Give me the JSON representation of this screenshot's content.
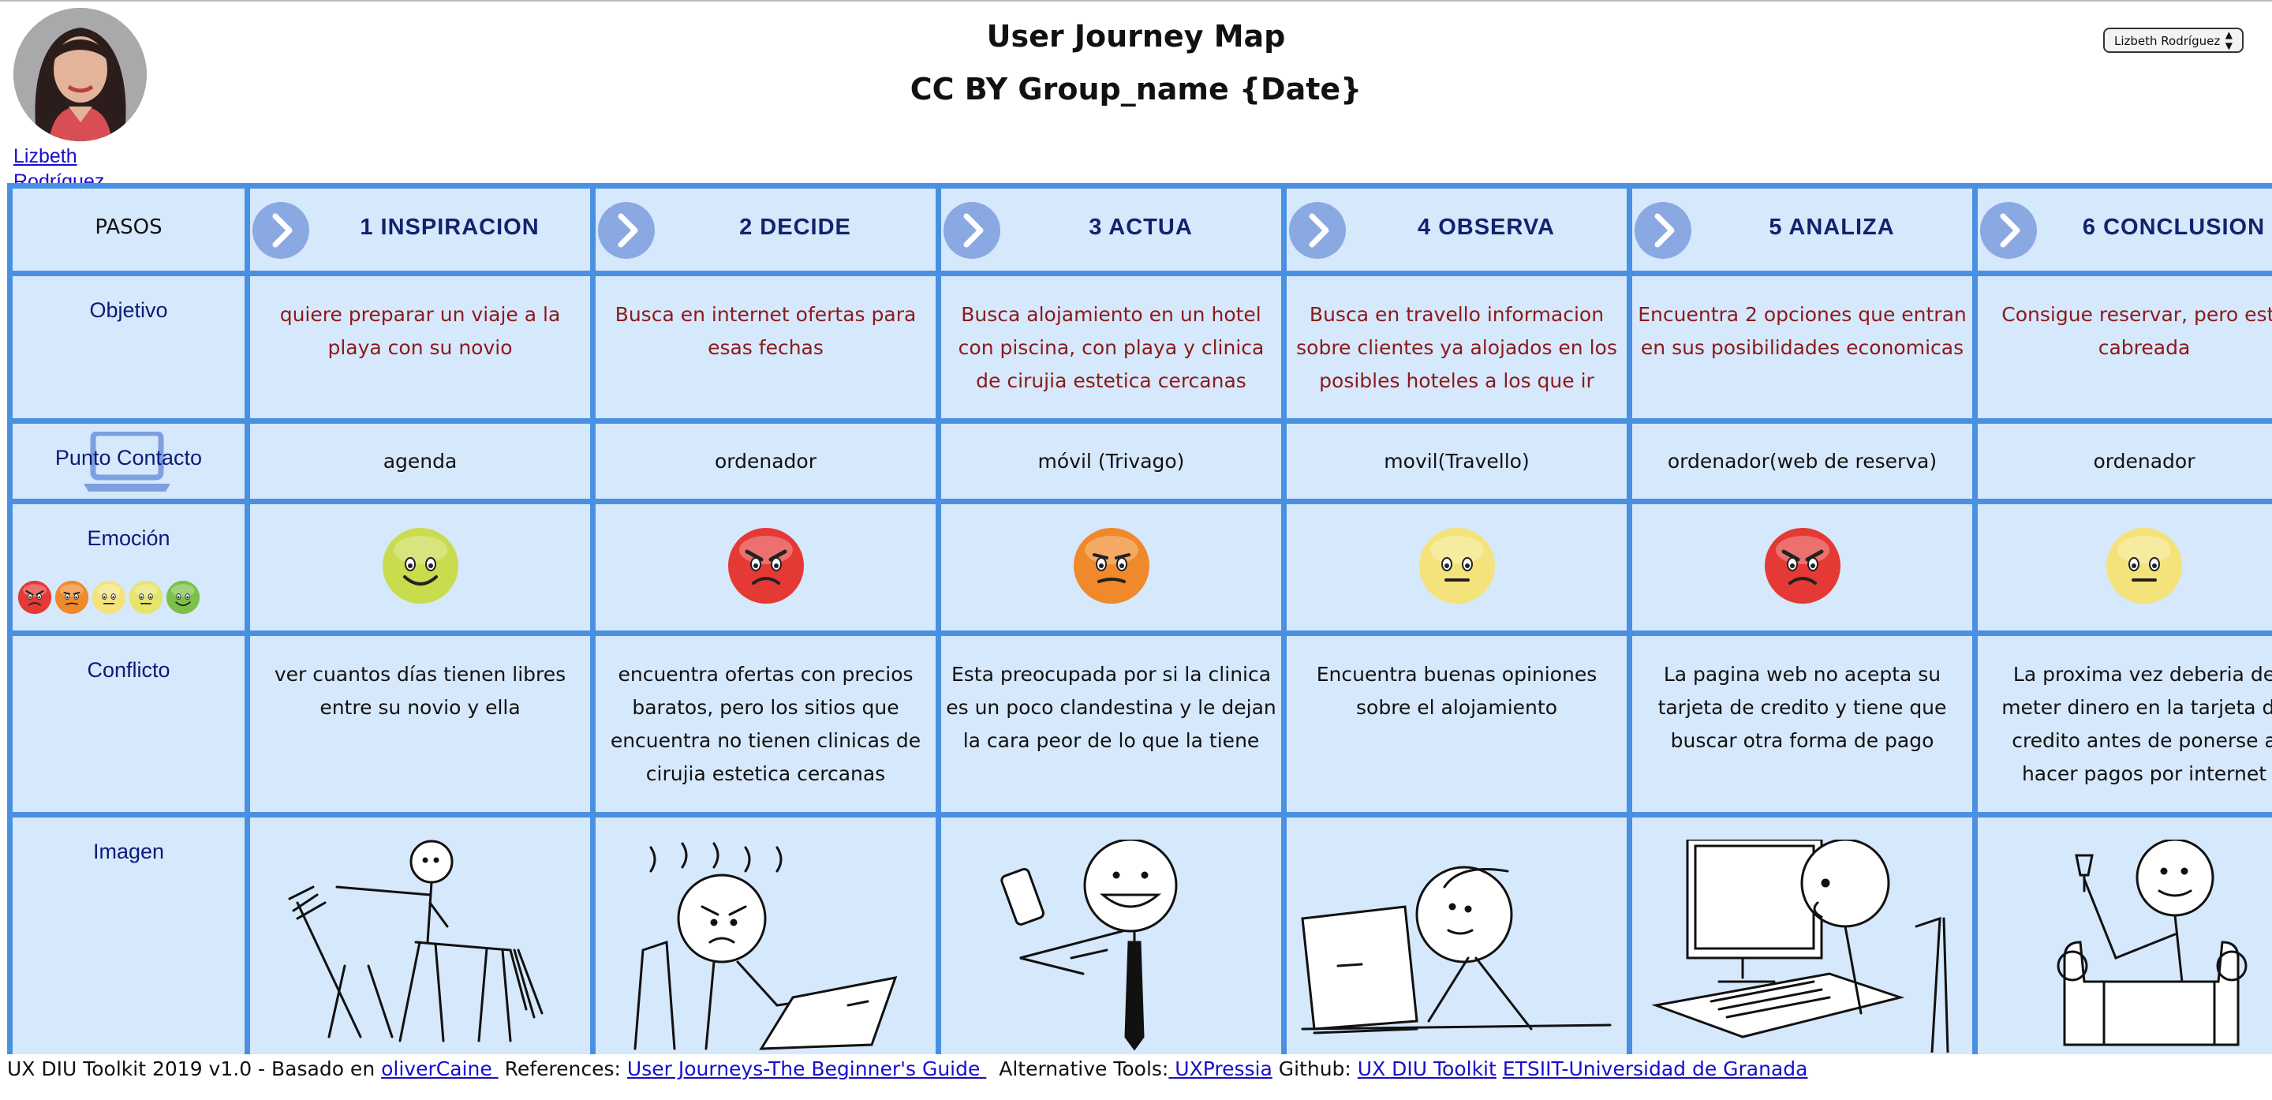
{
  "header": {
    "title": "User Journey Map",
    "subtitle": "CC BY Group_name {Date}",
    "user_name": "Lizbeth Rodríguez",
    "user_select_value": "Lizbeth Rodríguez"
  },
  "row_labels": {
    "pasos": "PASOS",
    "objetivo": "Objetivo",
    "punto_contacto": "Punto Contacto",
    "emocion": "Emoción",
    "conflicto": "Conflicto",
    "imagen": "Imagen"
  },
  "steps": [
    {
      "title": "1 INSPIRACION",
      "objetivo": "quiere preparar un viaje a la playa con su novio",
      "punto_contacto": "agenda",
      "emotion": "happy",
      "emotion_color": "#c9dc4e",
      "conflicto": "ver cuantos días tienen libres entre su novio y ella",
      "image_icon": "stick-figure-pointing-icon"
    },
    {
      "title": "2 DECIDE",
      "objetivo": "Busca en internet ofertas para esas fechas",
      "punto_contacto": "ordenador",
      "emotion": "angry",
      "emotion_color": "#e53935",
      "conflicto": "encuentra ofertas con precios baratos, pero los sitios que encuentra no tienen clinicas de cirujia estetica cercanas",
      "image_icon": "stick-figure-frustrated-laptop-icon"
    },
    {
      "title": "3 ACTUA",
      "objetivo": "Busca alojamiento en un hotel con piscina, con playa y clinica de cirujia estetica cercanas",
      "punto_contacto": "móvil (Trivago)",
      "emotion": "annoyed",
      "emotion_color": "#f0892a",
      "conflicto": "Esta preocupada por si la clinica es un poco clandestina y le dejan la cara peor de lo que la tiene",
      "image_icon": "stick-figure-phone-icon"
    },
    {
      "title": "4 OBSERVA",
      "objetivo": "Busca en travello informacion sobre clientes ya alojados en los posibles hoteles a los que ir",
      "punto_contacto": "movil(Travello)",
      "emotion": "neutral",
      "emotion_color": "#f3e37a",
      "conflicto": "Encuentra buenas opiniones sobre el alojamiento",
      "image_icon": "stick-figure-laptop-icon"
    },
    {
      "title": "5 ANALIZA",
      "objetivo": "Encuentra 2 opciones que entran en sus posibilidades economicas",
      "punto_contacto": "ordenador(web de reserva)",
      "emotion": "angry",
      "emotion_color": "#e53935",
      "conflicto": "La pagina web no acepta su tarjeta de credito y tiene que buscar otra forma de pago",
      "image_icon": "stick-figure-computer-icon"
    },
    {
      "title": "6 CONCLUSION",
      "objetivo": "Consigue reservar, pero esta cabreada",
      "punto_contacto": "ordenador",
      "emotion": "neutral",
      "emotion_color": "#f3e37a",
      "conflicto": "La proxima vez deberia de meter dinero en la tarjeta de credito antes de ponerse a hacer pagos por internet",
      "image_icon": "stick-figure-armchair-icon"
    }
  ],
  "emotion_scale": [
    "#e53935",
    "#f0892a",
    "#f3e37a",
    "#e6e46a",
    "#7cc04a"
  ],
  "footer": {
    "prefix": "UX DIU Toolkit 2019 v1.0 - Basado en ",
    "link1": "oliverCaine ",
    "references_label": "References: ",
    "link2": "User Journeys-The Beginner's Guide ",
    "alt_tools_label": "Alternative Tools:",
    "link3": " UXPressia",
    "github_label": " Github: ",
    "link4": "UX DIU Toolkit",
    "link5": "ETSIIT-Universidad de Granada"
  }
}
